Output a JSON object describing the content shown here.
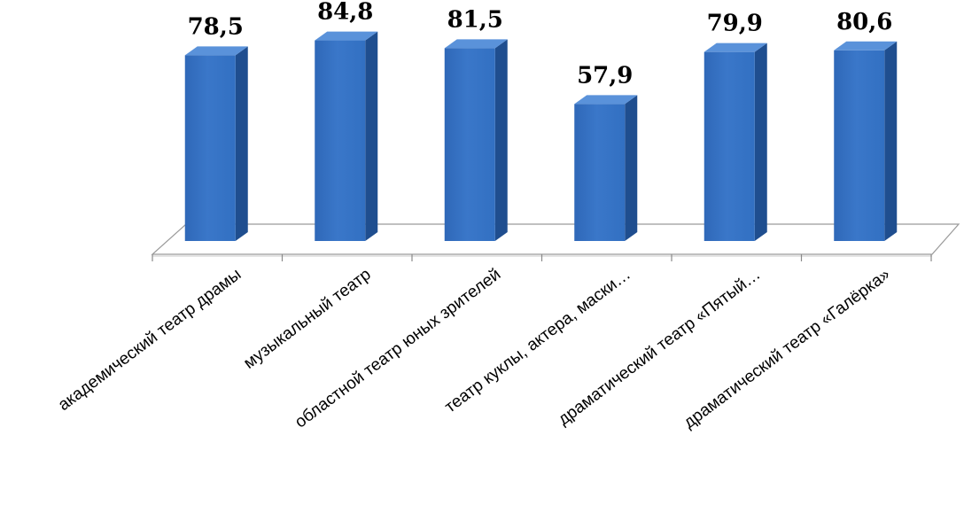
{
  "chart_data": {
    "type": "bar",
    "categories": [
      "академический театр драмы",
      "музыкальный театр",
      "областной театр юных зрителей",
      "театр куклы, актера, маски…",
      "драматический театр «Пятый…",
      "драматический театр «Галёрка»"
    ],
    "values": [
      78.5,
      84.8,
      81.5,
      57.9,
      79.9,
      80.6
    ],
    "value_labels": [
      "78,5",
      "84,8",
      "81,5",
      "57,9",
      "79,9",
      "80,6"
    ],
    "title": "",
    "xlabel": "",
    "ylabel": "",
    "ylim": [
      0,
      100
    ],
    "grid": false,
    "legend": "none",
    "style": "3d-column",
    "colors": {
      "bar_front": "#3a77c9",
      "bar_side": "#1f4e8f",
      "bar_top": "#5a92da",
      "floor": "#ffffff",
      "floor_stroke": "#9a9a9a"
    }
  }
}
